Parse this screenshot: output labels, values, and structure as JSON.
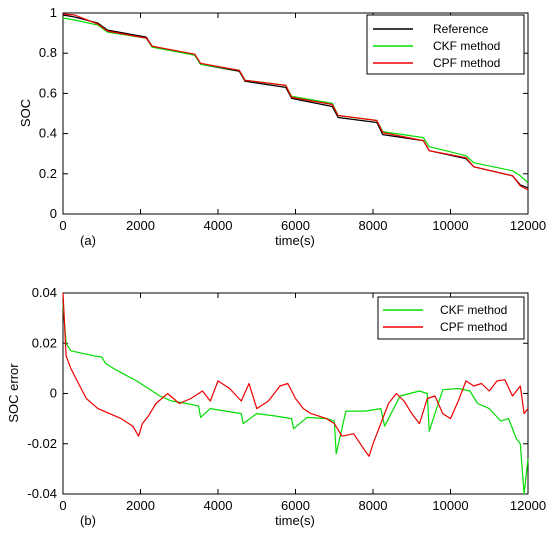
{
  "chart_data": [
    {
      "type": "line",
      "panel_label": "(a)",
      "xlabel": "time(s)",
      "ylabel": "SOC",
      "xlim": [
        0,
        12000
      ],
      "ylim": [
        0,
        1
      ],
      "xticks": [
        0,
        2000,
        4000,
        6000,
        8000,
        10000,
        12000
      ],
      "yticks": [
        0,
        0.2,
        0.4,
        0.6,
        0.8,
        1
      ],
      "ytick_labels": [
        "0",
        "0.2",
        "0.4",
        "0.6",
        "0.8",
        "1"
      ],
      "legend_position": "top-right",
      "series": [
        {
          "name": "Reference",
          "color": "#000000",
          "x": [
            0,
            300,
            900,
            1150,
            2150,
            2300,
            3400,
            3550,
            4550,
            4700,
            5750,
            5900,
            6950,
            7100,
            8100,
            8250,
            9300,
            9450,
            10400,
            10600,
            11600,
            11800,
            12000
          ],
          "y": [
            0.99,
            0.98,
            0.95,
            0.915,
            0.88,
            0.835,
            0.79,
            0.745,
            0.71,
            0.66,
            0.63,
            0.575,
            0.535,
            0.48,
            0.455,
            0.395,
            0.365,
            0.315,
            0.275,
            0.235,
            0.19,
            0.145,
            0.13
          ]
        },
        {
          "name": "CKF method",
          "color": "#00dd00",
          "x": [
            0,
            300,
            900,
            1150,
            2150,
            2300,
            3400,
            3550,
            4550,
            4700,
            5750,
            5900,
            6950,
            7100,
            8100,
            8250,
            9300,
            9450,
            10400,
            10600,
            11600,
            11800,
            12000
          ],
          "y": [
            0.975,
            0.965,
            0.94,
            0.905,
            0.875,
            0.83,
            0.79,
            0.745,
            0.715,
            0.665,
            0.64,
            0.585,
            0.55,
            0.49,
            0.465,
            0.41,
            0.38,
            0.335,
            0.29,
            0.255,
            0.215,
            0.19,
            0.155
          ]
        },
        {
          "name": "CPF method",
          "color": "#ee0000",
          "x": [
            0,
            300,
            900,
            1150,
            2150,
            2300,
            3400,
            3550,
            4550,
            4700,
            5750,
            5900,
            6950,
            7100,
            8100,
            8250,
            9300,
            9450,
            10400,
            10600,
            11600,
            11800,
            12000
          ],
          "y": [
            0.995,
            0.99,
            0.945,
            0.91,
            0.875,
            0.835,
            0.795,
            0.75,
            0.715,
            0.665,
            0.64,
            0.58,
            0.545,
            0.49,
            0.465,
            0.405,
            0.365,
            0.315,
            0.28,
            0.235,
            0.19,
            0.14,
            0.12
          ]
        }
      ]
    },
    {
      "type": "line",
      "panel_label": "(b)",
      "xlabel": "time(s)",
      "ylabel": "SOC error",
      "xlim": [
        0,
        12000
      ],
      "ylim": [
        -0.04,
        0.04
      ],
      "xticks": [
        0,
        2000,
        4000,
        6000,
        8000,
        10000,
        12000
      ],
      "yticks": [
        -0.04,
        -0.02,
        0,
        0.02,
        0.04
      ],
      "ytick_labels": [
        "-0.04",
        "-0.02",
        "0",
        "0.02",
        "0.04"
      ],
      "legend_position": "top-right",
      "series": [
        {
          "name": "CKF method",
          "color": "#00dd00",
          "x": [
            0,
            80,
            200,
            500,
            800,
            1000,
            1100,
            1150,
            1300,
            1600,
            1900,
            2200,
            2500,
            2800,
            3200,
            3500,
            3550,
            3800,
            4200,
            4600,
            4650,
            5000,
            5500,
            5900,
            5950,
            6300,
            6800,
            7000,
            7050,
            7300,
            7800,
            8200,
            8300,
            8700,
            9200,
            9400,
            9450,
            9800,
            10200,
            10500,
            10700,
            11000,
            11300,
            11500,
            11700,
            11800,
            11900,
            12000
          ],
          "y": [
            0.036,
            0.02,
            0.017,
            0.016,
            0.015,
            0.0145,
            0.012,
            0.0115,
            0.01,
            0.0075,
            0.005,
            0.002,
            -0.001,
            -0.003,
            -0.004,
            -0.005,
            -0.0095,
            -0.006,
            -0.007,
            -0.008,
            -0.012,
            -0.008,
            -0.009,
            -0.01,
            -0.014,
            -0.0095,
            -0.01,
            -0.011,
            -0.024,
            -0.007,
            -0.007,
            -0.006,
            -0.013,
            -0.001,
            0.001,
            0.0,
            -0.015,
            0.0015,
            0.002,
            0.001,
            -0.004,
            -0.006,
            -0.011,
            -0.01,
            -0.018,
            -0.02,
            -0.04,
            -0.026
          ]
        },
        {
          "name": "CPF method",
          "color": "#ee0000",
          "x": [
            0,
            80,
            200,
            400,
            600,
            900,
            1200,
            1500,
            1800,
            1950,
            2050,
            2200,
            2400,
            2700,
            3000,
            3300,
            3600,
            3800,
            4000,
            4300,
            4600,
            4800,
            5000,
            5300,
            5600,
            5800,
            6000,
            6200,
            6400,
            6600,
            6800,
            7000,
            7200,
            7500,
            7800,
            7900,
            8000,
            8200,
            8400,
            8600,
            8800,
            9000,
            9200,
            9400,
            9600,
            9800,
            10000,
            10200,
            10400,
            10600,
            10800,
            11000,
            11200,
            11400,
            11600,
            11800,
            11900,
            12000
          ],
          "y": [
            0.04,
            0.015,
            0.01,
            0.004,
            -0.002,
            -0.006,
            -0.008,
            -0.01,
            -0.013,
            -0.017,
            -0.012,
            -0.009,
            -0.004,
            0.0,
            -0.004,
            -0.002,
            0.001,
            -0.003,
            0.005,
            0.002,
            -0.003,
            0.004,
            -0.006,
            -0.003,
            0.003,
            0.004,
            -0.002,
            -0.006,
            -0.008,
            -0.009,
            -0.01,
            -0.012,
            -0.017,
            -0.016,
            -0.023,
            -0.025,
            -0.02,
            -0.012,
            -0.004,
            0.0,
            -0.003,
            -0.008,
            -0.012,
            -0.002,
            -0.001,
            -0.008,
            -0.01,
            -0.003,
            0.005,
            0.003,
            0.004,
            0.001,
            0.005,
            0.0055,
            -0.001,
            0.003,
            -0.008,
            -0.006
          ]
        }
      ]
    }
  ]
}
